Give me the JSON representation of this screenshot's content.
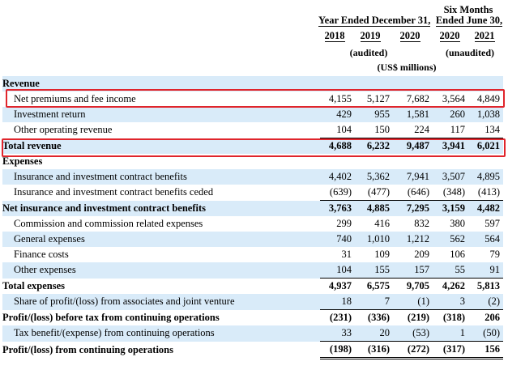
{
  "header": {
    "group_year_ended": "Year Ended December 31,",
    "group_six_months_line1": "Six Months",
    "group_six_months_line2": "Ended June 30,",
    "years": [
      "2018",
      "2019",
      "2020",
      "2020",
      "2021"
    ],
    "audited": "(audited)",
    "unaudited": "(unaudited)",
    "units": "(US$ millions)"
  },
  "rows": [
    {
      "label": "Revenue",
      "values": [
        "",
        "",
        "",
        "",
        ""
      ]
    },
    {
      "label": "Net premiums and fee income",
      "values": [
        "4,155",
        "5,127",
        "7,682",
        "3,564",
        "4,849"
      ]
    },
    {
      "label": "Investment return",
      "values": [
        "429",
        "955",
        "1,581",
        "260",
        "1,038"
      ]
    },
    {
      "label": "Other operating revenue",
      "values": [
        "104",
        "150",
        "224",
        "117",
        "134"
      ]
    },
    {
      "label": "Total revenue",
      "values": [
        "4,688",
        "6,232",
        "9,487",
        "3,941",
        "6,021"
      ]
    },
    {
      "label": "Expenses",
      "values": [
        "",
        "",
        "",
        "",
        ""
      ]
    },
    {
      "label": "Insurance and investment contract benefits",
      "values": [
        "4,402",
        "5,362",
        "7,941",
        "3,507",
        "4,895"
      ]
    },
    {
      "label": "Insurance and investment contract benefits ceded",
      "values": [
        "(639)",
        "(477)",
        "(646)",
        "(348)",
        "(413)"
      ]
    },
    {
      "label": "Net insurance and investment contract benefits",
      "values": [
        "3,763",
        "4,885",
        "7,295",
        "3,159",
        "4,482"
      ]
    },
    {
      "label": "Commission and commission related expenses",
      "values": [
        "299",
        "416",
        "832",
        "380",
        "597"
      ]
    },
    {
      "label": "General expenses",
      "values": [
        "740",
        "1,010",
        "1,212",
        "562",
        "564"
      ]
    },
    {
      "label": "Finance costs",
      "values": [
        "31",
        "109",
        "209",
        "106",
        "79"
      ]
    },
    {
      "label": "Other expenses",
      "values": [
        "104",
        "155",
        "157",
        "55",
        "91"
      ]
    },
    {
      "label": "Total expenses",
      "values": [
        "4,937",
        "6,575",
        "9,705",
        "4,262",
        "5,813"
      ]
    },
    {
      "label": "Share of profit/(loss) from associates and joint venture",
      "values": [
        "18",
        "7",
        "(1)",
        "3",
        "(2)"
      ]
    },
    {
      "label": "Profit/(loss) before tax from continuing operations",
      "values": [
        "(231)",
        "(336)",
        "(219)",
        "(318)",
        "206"
      ]
    },
    {
      "label": "Tax benefit/(expense) from continuing operations",
      "values": [
        "33",
        "20",
        "(53)",
        "1",
        "(50)"
      ]
    },
    {
      "label": "Profit/(loss) from continuing operations",
      "values": [
        "(198)",
        "(316)",
        "(272)",
        "(317)",
        "156"
      ]
    }
  ],
  "colors": {
    "row_shade": "#d9ebf9",
    "highlight": "#e0252c"
  }
}
